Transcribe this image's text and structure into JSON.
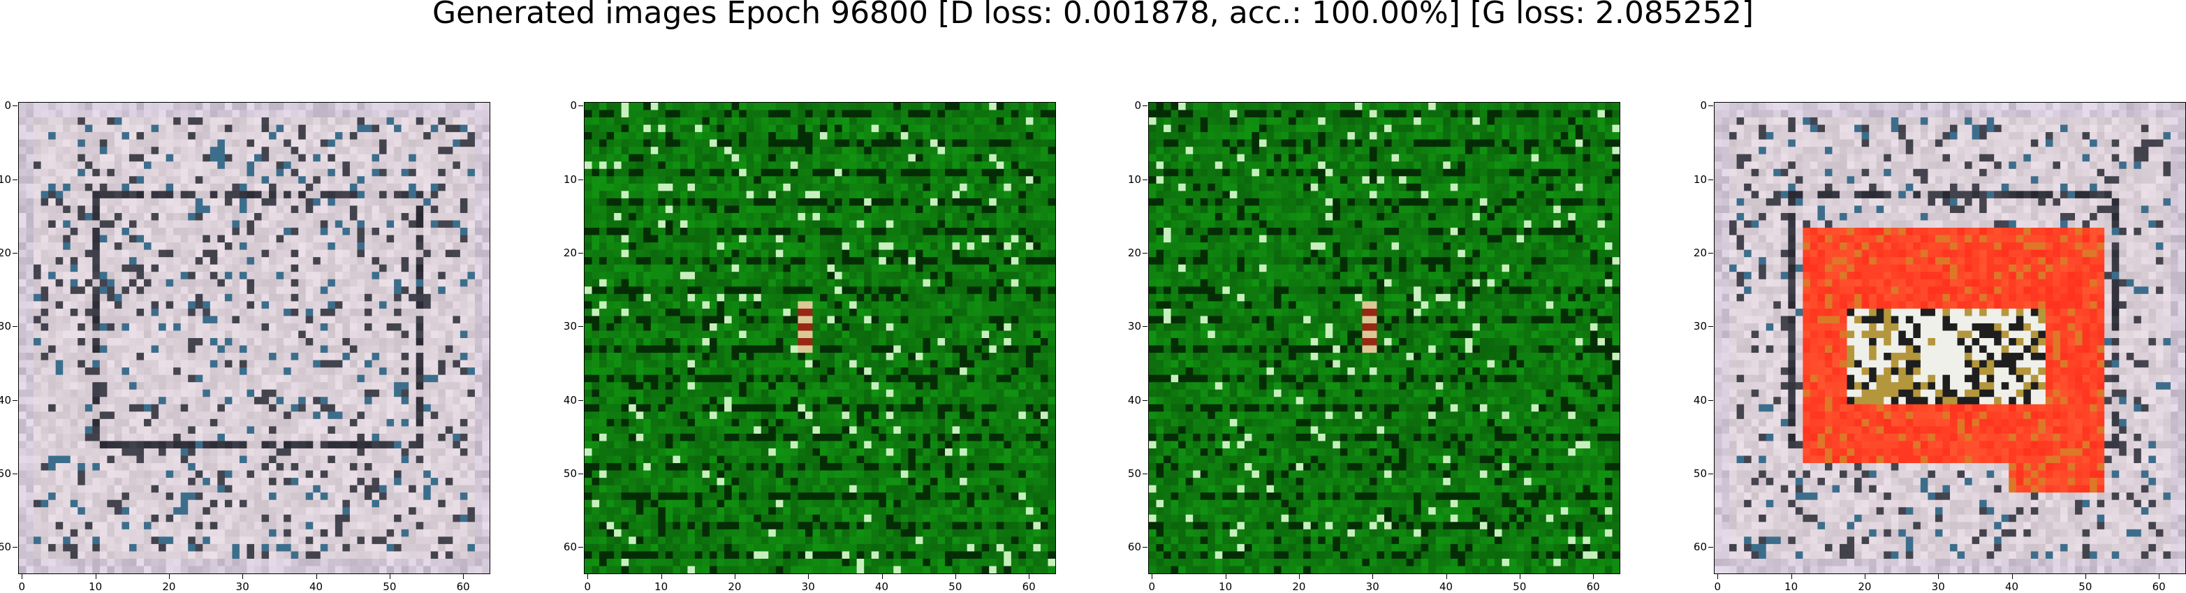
{
  "figure": {
    "title": "Generated images Epoch 96800 [D loss: 0.001878, acc.: 100.00%] [G loss: 2.085252]"
  },
  "axes": {
    "y_tick_labels": [
      "0",
      "10",
      "20",
      "30",
      "40",
      "50",
      "60"
    ],
    "x_tick_labels": [
      "0",
      "10",
      "20",
      "30",
      "40",
      "50",
      "60"
    ],
    "extent": [
      0,
      63
    ]
  },
  "panels": [
    {
      "name": "sample-1",
      "palette": "gray-white",
      "colors": {
        "base": "#d9ccd6",
        "dark": "#141418",
        "accent": "#2f6f86"
      }
    },
    {
      "name": "sample-2",
      "palette": "green",
      "colors": {
        "base": "#0f7a12",
        "dark": "#063d06",
        "accent": "#d9f0d2"
      }
    },
    {
      "name": "sample-3",
      "palette": "green",
      "colors": {
        "base": "#0f7a12",
        "dark": "#063d06",
        "accent": "#d9f0d2"
      }
    },
    {
      "name": "sample-4",
      "palette": "gray-white-red",
      "colors": {
        "base": "#d9ccd6",
        "dark": "#141418",
        "accent": "#ff3a22"
      }
    }
  ]
}
